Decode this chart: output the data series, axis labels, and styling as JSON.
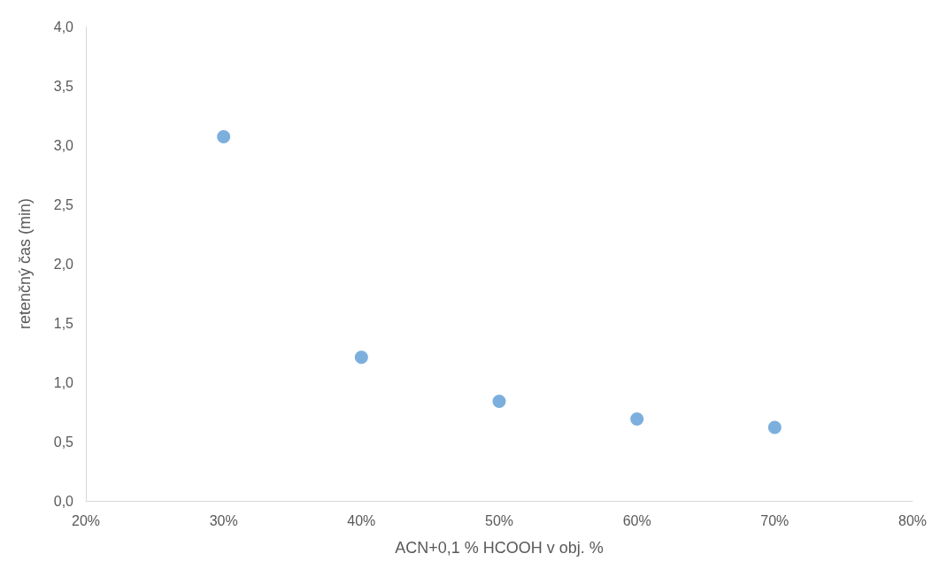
{
  "chart_data": {
    "type": "scatter",
    "xlabel": "ACN+0,1 % HCOOH v obj. %",
    "ylabel": "retenčný čas (min)",
    "x": [
      30,
      40,
      50,
      60,
      70
    ],
    "series": [
      {
        "color": "#5b9bd5",
        "values": [
          3.07,
          1.21,
          0.84,
          0.69,
          0.62
        ]
      }
    ],
    "xlim": [
      20,
      80
    ],
    "xticks": [
      {
        "value": 20,
        "label": "20%"
      },
      {
        "value": 30,
        "label": "30%"
      },
      {
        "value": 40,
        "label": "40%"
      },
      {
        "value": 50,
        "label": "50%"
      },
      {
        "value": 60,
        "label": "60%"
      },
      {
        "value": 70,
        "label": "70%"
      },
      {
        "value": 80,
        "label": "80%"
      }
    ],
    "ylim": [
      0,
      4
    ],
    "yticks": [
      {
        "value": 0,
        "label": "0,0"
      },
      {
        "value": 0.5,
        "label": "0,5"
      },
      {
        "value": 1,
        "label": "1,0"
      },
      {
        "value": 1.5,
        "label": "1,5"
      },
      {
        "value": 2,
        "label": "2,0"
      },
      {
        "value": 2.5,
        "label": "2,5"
      },
      {
        "value": 3,
        "label": "3,0"
      },
      {
        "value": 3.5,
        "label": "3,5"
      },
      {
        "value": 4,
        "label": "4,0"
      }
    ],
    "marker": "circle"
  }
}
